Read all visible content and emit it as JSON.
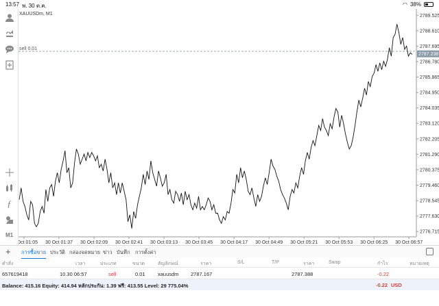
{
  "status_bar": {
    "time": "13:57",
    "date": "พ. 30 ต.ค.",
    "battery": "38%"
  },
  "chart": {
    "symbol_label": "XAUUSDm, M1",
    "position_line_label": "sell 0.01",
    "current_price": "2787.238"
  },
  "chart_data": {
    "type": "line",
    "y_ticks": [
      "2789.525",
      "2788.610",
      "2787.695",
      "2786.780",
      "2785.865",
      "2784.950",
      "2784.035",
      "2783.120",
      "2782.205",
      "2781.290",
      "2780.375",
      "2779.460",
      "2778.545",
      "2777.630",
      "2776.715"
    ],
    "x_ticks": [
      "30 Oct 01:05",
      "30 Oct 01:37",
      "30 Oct 02:09",
      "30 Oct 02:41",
      "30 Oct 03:13",
      "30 Oct 03:45",
      "30 Oct 04:17",
      "30 Oct 04:49",
      "30 Oct 05:21",
      "30 Oct 05:53",
      "30 Oct 06:25",
      "30 Oct 06:57"
    ],
    "position_line_price": 2787.388,
    "current_price_value": 2787.238,
    "ylim": [
      2776.4,
      2789.9
    ],
    "series": [
      {
        "values": [
          2778.6,
          2779.3,
          2778.5,
          2778.2,
          2777.7,
          2777.4,
          2778.5,
          2778.3,
          2777.2,
          2777.0,
          2777.2,
          2777.9,
          2778.2,
          2777.8,
          2779.2,
          2778.5,
          2779.3,
          2779.5,
          2778.8,
          2779.7,
          2780.2,
          2779.6,
          2780.4,
          2780.9,
          2781.5,
          2780.2,
          2780.5,
          2779.3,
          2779.6,
          2780.8,
          2781.6,
          2781.3,
          2780.7,
          2781.0,
          2781.3,
          2780.9,
          2781.4,
          2781.1,
          2781.4,
          2781.2,
          2780.9,
          2781.2,
          2780.5,
          2780.7,
          2780.3,
          2781.0,
          2780.4,
          2779.6,
          2780.2,
          2779.3,
          2779.6,
          2778.9,
          2779.6,
          2779.0,
          2779.6,
          2779.1,
          2778.6,
          2777.3,
          2777.7,
          2776.9,
          2777.9,
          2777.5,
          2778.3,
          2778.8,
          2779.3,
          2780.1,
          2779.5,
          2780.3,
          2779.8,
          2780.9,
          2780.2,
          2779.8,
          2779.4,
          2780.3,
          2779.9,
          2779.4,
          2779.6,
          2780.1,
          2778.9,
          2779.2,
          2778.6,
          2778.4,
          2779.1,
          2778.9,
          2778.5,
          2779.0,
          2778.3,
          2779.1,
          2778.6,
          2778.9,
          2778.3,
          2778.0,
          2778.4,
          2778.1,
          2778.8,
          2778.0,
          2778.2,
          2778.0,
          2778.3,
          2778.7,
          2778.5,
          2778.0,
          2778.3,
          2777.8,
          2777.8,
          2777.4,
          2777.2,
          2777.6,
          2777.4,
          2777.9,
          2777.8,
          2778.4,
          2779.2,
          2779.0,
          2780.1,
          2779.6,
          2780.5,
          2779.9,
          2780.3,
          2779.8,
          2779.1,
          2778.9,
          2779.3,
          2778.7,
          2778.2,
          2778.9,
          2778.5,
          2778.8,
          2779.4,
          2779.9,
          2779.5,
          2780.2,
          2781.0,
          2780.6,
          2780.4,
          2780.0,
          2779.7,
          2779.2,
          2778.9,
          2778.7,
          2778.4,
          2778.0,
          2778.8,
          2779.2,
          2779.0,
          2779.6,
          2779.3,
          2780.0,
          2780.5,
          2780.1,
          2780.9,
          2781.4,
          2781.0,
          2781.7,
          2782.1,
          2781.8,
          2782.4,
          2783.0,
          2782.7,
          2783.4,
          2782.9,
          2782.7,
          2782.4,
          2783.1,
          2782.8,
          2783.5,
          2784.0,
          2783.8,
          2782.9,
          2783.6,
          2783.1,
          2782.5,
          2782.0,
          2781.6,
          2781.8,
          2782.3,
          2783.0,
          2783.8,
          2784.5,
          2784.1,
          2784.6,
          2785.2,
          2784.8,
          2785.6,
          2785.3,
          2785.9,
          2786.1,
          2786.6,
          2786.2,
          2786.7,
          2786.3,
          2786.8,
          2786.5,
          2786.9,
          2787.6,
          2787.1,
          2788.2,
          2788.4,
          2789.0,
          2788.5,
          2787.8,
          2788.2,
          2787.5,
          2787.7,
          2787.1,
          2787.3,
          2787.2
        ]
      }
    ]
  },
  "tabs": [
    {
      "label": "การซื้อขาย",
      "active": true
    },
    {
      "label": "ประวัติ"
    },
    {
      "label": "กล่องจดหมาย"
    },
    {
      "label": "ข่าว"
    },
    {
      "label": "บันทึก"
    },
    {
      "label": "การตั้งค่า"
    }
  ],
  "table": {
    "headers": [
      "คำสั่ง",
      "เวลา",
      "ประเภท",
      "ขนาด",
      "สัญลักษณ์",
      "ราคา",
      "S/L",
      "T/P",
      "ราคา",
      "Swap",
      "กำไร",
      "หมายเหตุ"
    ],
    "row": {
      "order": "657619418",
      "time": "10.30 06:57",
      "type": "sell",
      "size": "0.01",
      "symbol": "xauusdm",
      "open_price": "2787.167",
      "current_price": "2787.388",
      "profit": "-0.22"
    }
  },
  "balance": {
    "text": "Balance: 415.16 Equity: 414.94 หลักประกัน: 1.39 ฟรี: 413.55 Level: 29 775.04%",
    "profit": "-0.22",
    "currency": "USD"
  },
  "colors": {
    "accent": "#1673d6",
    "loss": "#e53935",
    "price_label": "#8a99a8"
  },
  "icons": [
    "person-icon",
    "trade-icon",
    "chat-icon",
    "new-chart-icon",
    "crosshair-icon",
    "indicators-icon",
    "function-icon",
    "objects-icon",
    "timeframe-icon",
    "layout-icon"
  ],
  "sidebar": {
    "timeframe": "M1"
  }
}
